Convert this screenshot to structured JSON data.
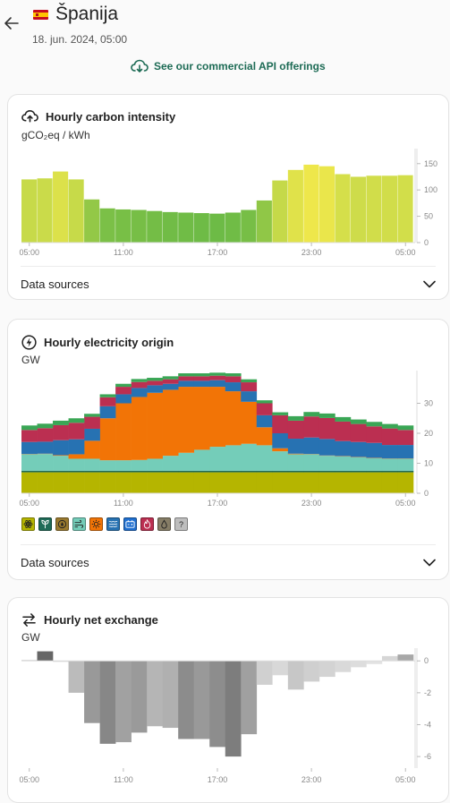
{
  "header": {
    "back_icon": "arrow-left-icon",
    "flag_icon": "spain-flag-icon",
    "country": "Španija",
    "datetime": "18. jun. 2024, 05:00"
  },
  "api_link": {
    "icon": "cloud-download-icon",
    "label": "See our commercial API offerings",
    "color": "#1d6b55"
  },
  "carbon_card": {
    "icon": "cloud-upload-icon",
    "title": "Hourly carbon intensity",
    "unit": "gCO₂eq / kWh",
    "data_sources_label": "Data sources",
    "chart_data": {
      "type": "bar",
      "x_tick_labels": [
        "05:00",
        "11:00",
        "17:00",
        "23:00",
        "05:00"
      ],
      "y_tick_labels": [
        "0",
        "50",
        "100",
        "150"
      ],
      "ylim": [
        0,
        170
      ],
      "x": [
        "05:00",
        "06:00",
        "07:00",
        "08:00",
        "09:00",
        "10:00",
        "11:00",
        "12:00",
        "13:00",
        "14:00",
        "15:00",
        "16:00",
        "17:00",
        "18:00",
        "19:00",
        "20:00",
        "21:00",
        "22:00",
        "23:00",
        "00:00",
        "01:00",
        "02:00",
        "03:00",
        "04:00",
        "05:00"
      ],
      "values": [
        120,
        122,
        135,
        120,
        82,
        65,
        63,
        62,
        60,
        58,
        57,
        56,
        55,
        57,
        62,
        80,
        118,
        138,
        148,
        145,
        130,
        125,
        127,
        127,
        128
      ],
      "grid": false
    }
  },
  "origin_card": {
    "icon": "lightning-icon",
    "title": "Hourly electricity origin",
    "unit": "GW",
    "data_sources_label": "Data sources",
    "legend_icons": [
      "nuclear-icon",
      "biomass-icon",
      "hydro-icon",
      "wind-icon",
      "solar-icon",
      "gas-icon",
      "battery-icon",
      "coal-icon",
      "oil-icon",
      "unknown-icon"
    ],
    "legend_unknown_text": "?",
    "chart_data": {
      "type": "area",
      "x_tick_labels": [
        "05:00",
        "11:00",
        "17:00",
        "23:00",
        "05:00"
      ],
      "y_tick_labels": [
        "0",
        "10",
        "20",
        "30"
      ],
      "ylim": [
        0,
        40
      ],
      "x": [
        "05:00",
        "06:00",
        "07:00",
        "08:00",
        "09:00",
        "10:00",
        "11:00",
        "12:00",
        "13:00",
        "14:00",
        "15:00",
        "16:00",
        "17:00",
        "18:00",
        "19:00",
        "20:00",
        "21:00",
        "22:00",
        "23:00",
        "00:00",
        "01:00",
        "02:00",
        "03:00",
        "04:00",
        "05:00"
      ],
      "series": [
        {
          "name": "nuclear",
          "color": "#b5b500",
          "values": [
            7,
            7,
            7,
            7,
            7,
            7,
            7,
            7,
            7,
            7,
            7,
            7,
            7,
            7,
            7,
            7,
            7,
            7,
            7,
            7,
            7,
            7,
            7,
            7,
            7
          ]
        },
        {
          "name": "biomass",
          "color": "#1f6b57",
          "values": [
            0.5,
            0.5,
            0.5,
            0.5,
            0.5,
            0.5,
            0.5,
            0.5,
            0.5,
            0.5,
            0.5,
            0.5,
            0.5,
            0.5,
            0.5,
            0.5,
            0.5,
            0.5,
            0.5,
            0.5,
            0.5,
            0.5,
            0.5,
            0.5,
            0.5
          ]
        },
        {
          "name": "wind",
          "color": "#74cdb9",
          "values": [
            5.5,
            5.6,
            5,
            4,
            4,
            3.5,
            3.5,
            3.6,
            4,
            5,
            6,
            7,
            8,
            8.5,
            9,
            8.5,
            6.5,
            5.5,
            5.5,
            5,
            4.8,
            4.5,
            4.2,
            4,
            4
          ]
        },
        {
          "name": "solar",
          "color": "#f27406",
          "values": [
            0.1,
            0.1,
            0.2,
            1.5,
            6,
            14,
            19,
            21,
            22,
            22,
            22,
            21,
            20,
            18,
            14,
            6,
            1,
            0.2,
            0.1,
            0.1,
            0.1,
            0.1,
            0.1,
            0.1,
            0.1
          ]
        },
        {
          "name": "hydro",
          "color": "#2772b2",
          "values": [
            4,
            4,
            5,
            5,
            4,
            4,
            3,
            3,
            2.5,
            2,
            2,
            2,
            2.2,
            3,
            3.5,
            4,
            5,
            5,
            5.5,
            5.5,
            5,
            5,
            5,
            4.5,
            4.5
          ]
        },
        {
          "name": "gas",
          "color": "#bb2f51",
          "values": [
            4,
            4.5,
            5,
            5.5,
            4,
            3,
            2.5,
            2,
            1.5,
            1.5,
            1.5,
            1.5,
            1.5,
            2,
            3,
            4,
            6,
            6,
            7,
            7,
            6.5,
            6,
            5.5,
            5.5,
            5
          ]
        },
        {
          "name": "other",
          "color": "#3aa655",
          "values": [
            1.5,
            1.5,
            1.5,
            1.5,
            1,
            1,
            1,
            1,
            1,
            1,
            1,
            1,
            1,
            1,
            1,
            1,
            1,
            1.5,
            1.5,
            1.5,
            1.5,
            1.5,
            1.5,
            1.5,
            1.5
          ]
        }
      ],
      "grid": false
    }
  },
  "exchange_card": {
    "icon": "exchange-arrows-icon",
    "title": "Hourly net exchange",
    "unit": "GW",
    "chart_data": {
      "type": "bar",
      "x_tick_labels": [
        "05:00",
        "11:00",
        "17:00",
        "23:00",
        "05:00"
      ],
      "y_tick_labels": [
        "0",
        "-2",
        "-4",
        "-6"
      ],
      "ylim": [
        -6.5,
        0.8
      ],
      "x": [
        "05:00",
        "06:00",
        "07:00",
        "08:00",
        "09:00",
        "10:00",
        "11:00",
        "12:00",
        "13:00",
        "14:00",
        "15:00",
        "16:00",
        "17:00",
        "18:00",
        "19:00",
        "20:00",
        "21:00",
        "22:00",
        "23:00",
        "00:00",
        "01:00",
        "02:00",
        "03:00",
        "04:00",
        "05:00"
      ],
      "values": [
        0.05,
        0.6,
        0,
        -2,
        -3.9,
        -5.2,
        -5.1,
        -4.5,
        -4.1,
        -4.2,
        -4.9,
        -4.9,
        -5.4,
        -6.0,
        -4.6,
        -1.5,
        -0.9,
        -1.8,
        -1.3,
        -1.0,
        -0.7,
        -0.4,
        -0.2,
        0.3,
        0.4
      ],
      "grid": false
    }
  }
}
